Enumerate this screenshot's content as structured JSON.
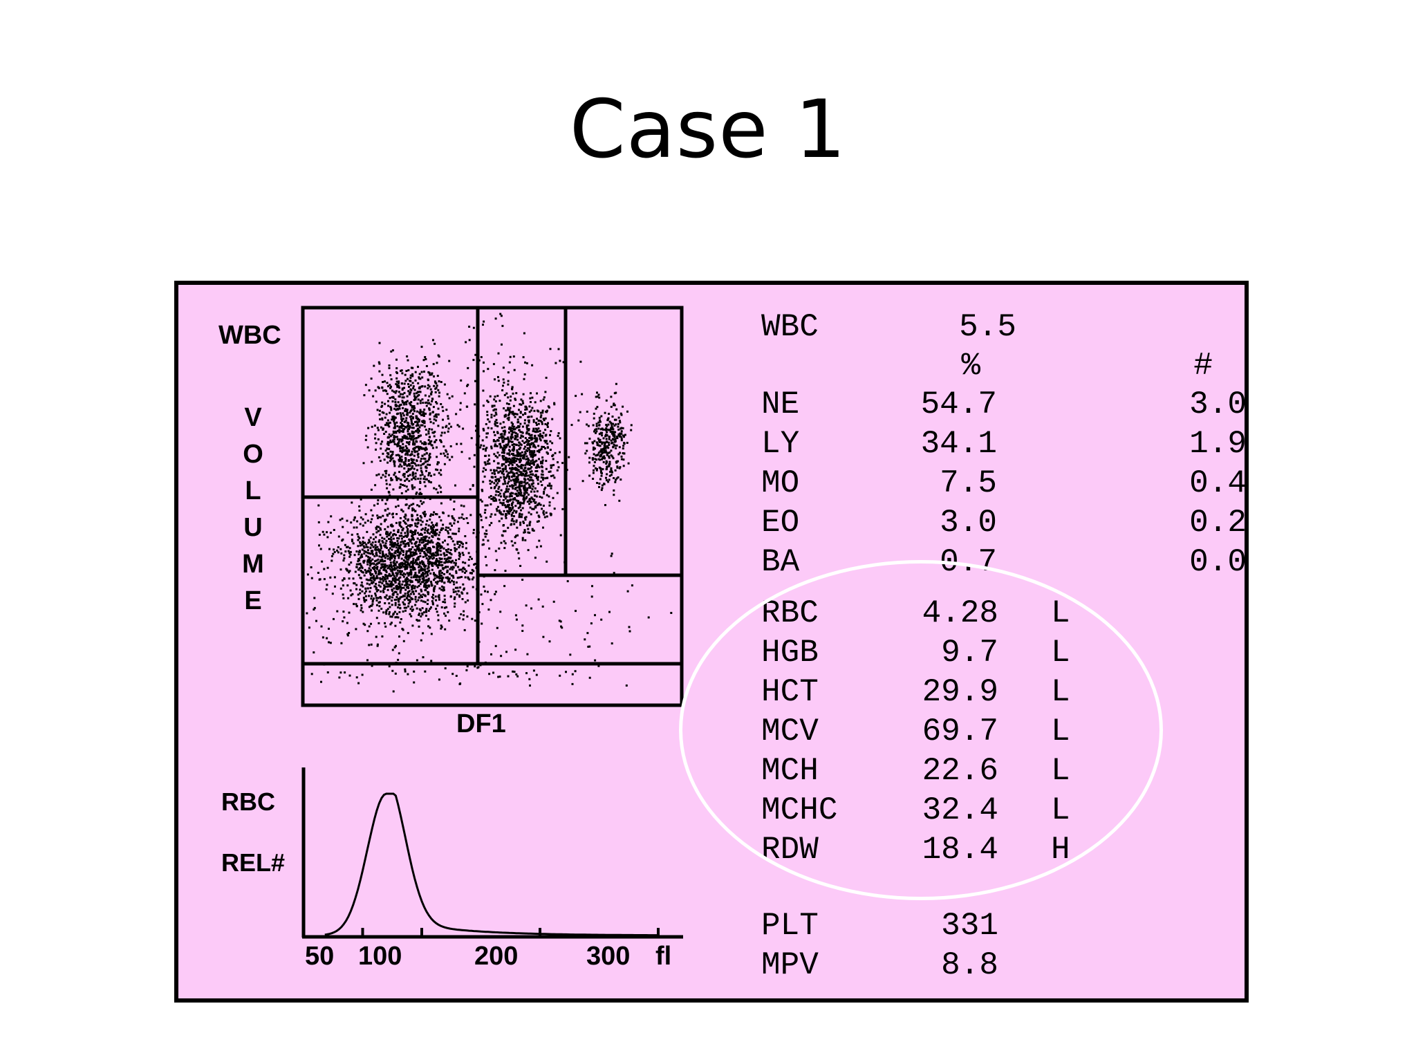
{
  "slide": {
    "title": "Case 1"
  },
  "scatter": {
    "y_label": "WBC",
    "volume_letters": [
      "V",
      "O",
      "L",
      "U",
      "M",
      "E"
    ],
    "x_label": "DF1"
  },
  "histogram": {
    "y_label_1": "RBC",
    "y_label_2": "REL#",
    "ticks": [
      {
        "value": 50,
        "label": "50"
      },
      {
        "value": 100,
        "label": "100"
      },
      {
        "value": 200,
        "label": "200"
      },
      {
        "value": 300,
        "label": "300"
      }
    ],
    "unit": "fl"
  },
  "results": {
    "wbc": {
      "label": "WBC",
      "value": "5.5"
    },
    "headers": {
      "percent": "%",
      "count": "#"
    },
    "differential": [
      {
        "label": "NE",
        "percent": "54.7",
        "count": "3.0"
      },
      {
        "label": "LY",
        "percent": "34.1",
        "count": "1.9"
      },
      {
        "label": "MO",
        "percent": "7.5",
        "count": "0.4"
      },
      {
        "label": "EO",
        "percent": "3.0",
        "count": "0.2"
      },
      {
        "label": "BA",
        "percent": "0.7",
        "count": "0.0"
      }
    ],
    "red_cells": [
      {
        "label": "RBC",
        "value": "4.28",
        "flag": "L"
      },
      {
        "label": "HGB",
        "value": "9.7",
        "flag": "L"
      },
      {
        "label": "HCT",
        "value": "29.9",
        "flag": "L"
      },
      {
        "label": "MCV",
        "value": "69.7",
        "flag": "L"
      },
      {
        "label": "MCH",
        "value": "22.6",
        "flag": "L"
      },
      {
        "label": "MCHC",
        "value": "32.4",
        "flag": "L"
      },
      {
        "label": "RDW",
        "value": "18.4",
        "flag": "H"
      }
    ],
    "platelets": [
      {
        "label": "PLT",
        "value": "331"
      },
      {
        "label": "MPV",
        "value": "8.8"
      }
    ]
  }
}
